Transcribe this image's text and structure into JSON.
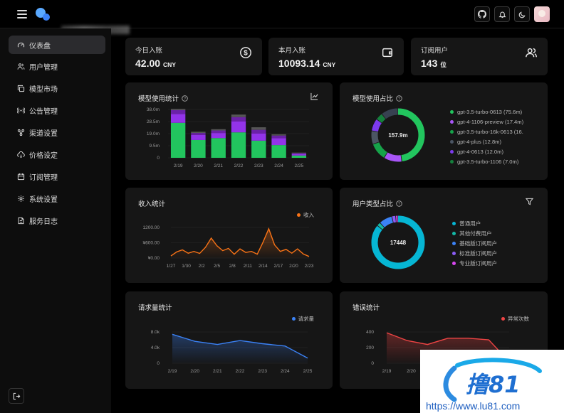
{
  "sidebar": {
    "items": [
      {
        "label": "仪表盘",
        "icon": "gauge-icon",
        "active": true
      },
      {
        "label": "用户管理",
        "icon": "users-icon"
      },
      {
        "label": "模型市场",
        "icon": "copy-icon"
      },
      {
        "label": "公告管理",
        "icon": "broadcast-icon"
      },
      {
        "label": "渠道设置",
        "icon": "channels-icon"
      },
      {
        "label": "价格设定",
        "icon": "cloud-price-icon"
      },
      {
        "label": "订阅管理",
        "icon": "calendar-icon"
      },
      {
        "label": "系统设置",
        "icon": "gear-icon"
      },
      {
        "label": "服务日志",
        "icon": "log-icon"
      }
    ]
  },
  "stats": [
    {
      "label": "今日入账",
      "value": "42.00",
      "unit": "CNY",
      "icon": "dollar-circle-icon"
    },
    {
      "label": "本月入账",
      "value": "10093.14",
      "unit": "CNY",
      "icon": "wallet-icon"
    },
    {
      "label": "订阅用户",
      "value": "143",
      "unit": "位",
      "icon": "users-icon"
    }
  ],
  "model_usage": {
    "title": "模型使用统计",
    "chart_data": {
      "type": "bar",
      "categories": [
        "2/19",
        "2/20",
        "2/21",
        "2/22",
        "2/23",
        "2/24",
        "2/25"
      ],
      "y_ticks": [
        "38.0m",
        "28.5m",
        "19.0m",
        "9.5m",
        "0"
      ],
      "ylim": [
        0,
        38.0
      ],
      "series": [
        {
          "color": "#22c55e",
          "values": [
            27.5,
            14.0,
            15.5,
            20.0,
            13.5,
            10.0,
            1.8
          ]
        },
        {
          "color": "#9333ea",
          "values": [
            7.0,
            4.0,
            4.0,
            8.5,
            5.5,
            5.5,
            1.2
          ]
        },
        {
          "color": "#6b21a8",
          "values": [
            3.0,
            1.5,
            2.0,
            3.5,
            3.0,
            2.0,
            0.6
          ]
        },
        {
          "color": "#555555",
          "values": [
            1.0,
            1.0,
            1.0,
            2.0,
            2.0,
            1.0,
            0.5
          ]
        }
      ]
    }
  },
  "model_share": {
    "title": "模型使用占比",
    "center": "157.9m",
    "chart_data": {
      "type": "pie",
      "slices": [
        {
          "label": "gpt-3.5-turbo-0613 (75.6m)",
          "value": 75.6,
          "color": "#22c55e"
        },
        {
          "label": "gpt-4-1106-preview (17.4m)",
          "value": 17.4,
          "color": "#a855f7"
        },
        {
          "label": "gpt-3.5-turbo-16k-0613 (16.",
          "value": 16.8,
          "color": "#16a34a"
        },
        {
          "label": "gpt-4-plus (12.8m)",
          "value": 12.8,
          "color": "#4b5563"
        },
        {
          "label": "gpt-4-0613 (12.0m)",
          "value": 12.0,
          "color": "#7c3aed"
        },
        {
          "label": "gpt-3.5-turbo-1106 (7.0m)",
          "value": 7.0,
          "color": "#15803d"
        },
        {
          "value": 16.3,
          "color": "#374151"
        }
      ]
    }
  },
  "income": {
    "title": "收入统计",
    "legend": "收入",
    "color": "#f97316",
    "chart_data": {
      "type": "area",
      "x_ticks": [
        "1/27",
        "1/30",
        "2/2",
        "2/5",
        "2/8",
        "2/11",
        "2/14",
        "2/17",
        "2/20",
        "2/23"
      ],
      "y_ticks": [
        "1200.00",
        "¥600.00",
        "¥0.00"
      ],
      "ylim": [
        0,
        1200
      ],
      "values": [
        80,
        240,
        320,
        190,
        260,
        180,
        420,
        780,
        480,
        290,
        380,
        150,
        360,
        220,
        260,
        150,
        620,
        1150,
        520,
        260,
        340,
        190,
        360,
        160,
        60
      ]
    }
  },
  "user_type": {
    "title": "用户类型占比",
    "center": "17448",
    "chart_data": {
      "type": "pie",
      "slices": [
        {
          "label": "普通用户",
          "value": 15000,
          "color": "#06b6d4"
        },
        {
          "label": "其他付费用户",
          "value": 400,
          "color": "#14b8a6"
        },
        {
          "label": "基础版订阅用户",
          "value": 1400,
          "color": "#3b82f6"
        },
        {
          "label": "标准版订阅用户",
          "value": 400,
          "color": "#8b5cf6"
        },
        {
          "label": "专业版订阅用户",
          "value": 248,
          "color": "#d946ef"
        }
      ]
    }
  },
  "requests": {
    "title": "请求量统计",
    "legend": "请求量",
    "color": "#3b82f6",
    "chart_data": {
      "type": "area",
      "x_ticks": [
        "2/19",
        "2/20",
        "2/21",
        "2/22",
        "2/23",
        "2/24",
        "2/25"
      ],
      "y_ticks": [
        "8.0k",
        "4.0k",
        "0"
      ],
      "ylim": [
        0,
        8000
      ],
      "values": [
        7400,
        5600,
        4800,
        5800,
        5000,
        4400,
        1300
      ]
    }
  },
  "errors": {
    "title": "错误统计",
    "legend": "异常次数",
    "color": "#ef4444",
    "chart_data": {
      "type": "area",
      "x_ticks": [
        "2/19",
        "2/20",
        "2/21",
        "2/22"
      ],
      "y_ticks": [
        "400",
        "200",
        "0"
      ],
      "ylim": [
        0,
        400
      ],
      "values": [
        390,
        290,
        240,
        320,
        320,
        300,
        20
      ]
    }
  }
}
